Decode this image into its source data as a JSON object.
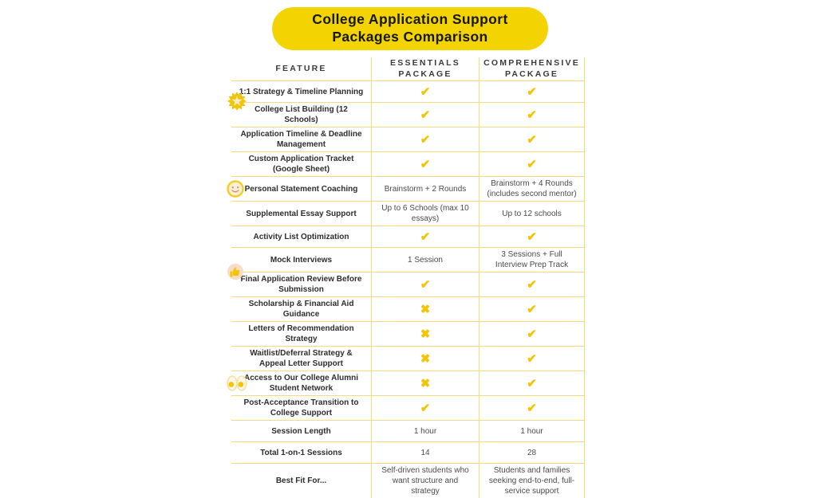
{
  "banner": {
    "title": "College Application Support Packages Comparison",
    "background_color": "#F3D402",
    "text_color": "#171708"
  },
  "symbols": {
    "check": "✔",
    "cross": "✖"
  },
  "colors": {
    "check_mark": "#F2C402",
    "table_line": "#F5DC78",
    "feature_text": "#2D2D2D",
    "value_text": "#4A4A4A"
  },
  "side_icons": [
    {
      "name": "starburst-icon"
    },
    {
      "name": "smiley-face-icon"
    },
    {
      "name": "thumbs-up-icon"
    },
    {
      "name": "eyes-icon"
    }
  ],
  "table": {
    "columns": [
      "FEATURE",
      "ESSENTIALS PACKAGE",
      "COMPREHENSIVE PACKAGE"
    ],
    "rows": [
      {
        "feature": "1:1 Strategy & Timeline Planning",
        "essentials": "CHECK",
        "comprehensive": "CHECK"
      },
      {
        "feature": "College List Building (12 Schools)",
        "essentials": "CHECK",
        "comprehensive": "CHECK"
      },
      {
        "feature": "Application Timeline & Deadline Management",
        "essentials": "CHECK",
        "comprehensive": "CHECK"
      },
      {
        "feature": "Custom Application Tracket (Google Sheet)",
        "essentials": "CHECK",
        "comprehensive": "CHECK"
      },
      {
        "feature": "Personal Statement Coaching",
        "essentials": "Brainstorm + 2 Rounds",
        "comprehensive": "Brainstorm + 4 Rounds (includes second mentor)"
      },
      {
        "feature": "Supplemental Essay Support",
        "essentials": "Up to 6 Schools (max 10 essays)",
        "comprehensive": "Up to 12 schools"
      },
      {
        "feature": "Activity List Optimization",
        "essentials": "CHECK",
        "comprehensive": "CHECK"
      },
      {
        "feature": "Mock Interviews",
        "essentials": "1 Session",
        "comprehensive": "3 Sessions + Full Interview Prep Track"
      },
      {
        "feature": "Final Application Review Before Submission",
        "essentials": "CHECK",
        "comprehensive": "CHECK"
      },
      {
        "feature": "Scholarship & Financial Aid Guidance",
        "essentials": "CROSS",
        "comprehensive": "CHECK"
      },
      {
        "feature": "Letters of Recommendation Strategy",
        "essentials": "CROSS",
        "comprehensive": "CHECK"
      },
      {
        "feature": "Waitlist/Deferral Strategy & Appeal Letter Support",
        "essentials": "CROSS",
        "comprehensive": "CHECK"
      },
      {
        "feature": "Access to Our College Alumni Student Network",
        "essentials": "CROSS",
        "comprehensive": "CHECK"
      },
      {
        "feature": "Post-Acceptance Transition to College Support",
        "essentials": "CHECK",
        "comprehensive": "CHECK"
      },
      {
        "feature": "Session Length",
        "essentials": "1 hour",
        "comprehensive": "1 hour"
      },
      {
        "feature": "Total 1-on-1 Sessions",
        "essentials": "14",
        "comprehensive": "28"
      },
      {
        "feature": "Best Fit For...",
        "essentials": "Self-driven students who want structure and strategy",
        "comprehensive": "Students and families seeking end-to-end, full-service support"
      }
    ]
  }
}
